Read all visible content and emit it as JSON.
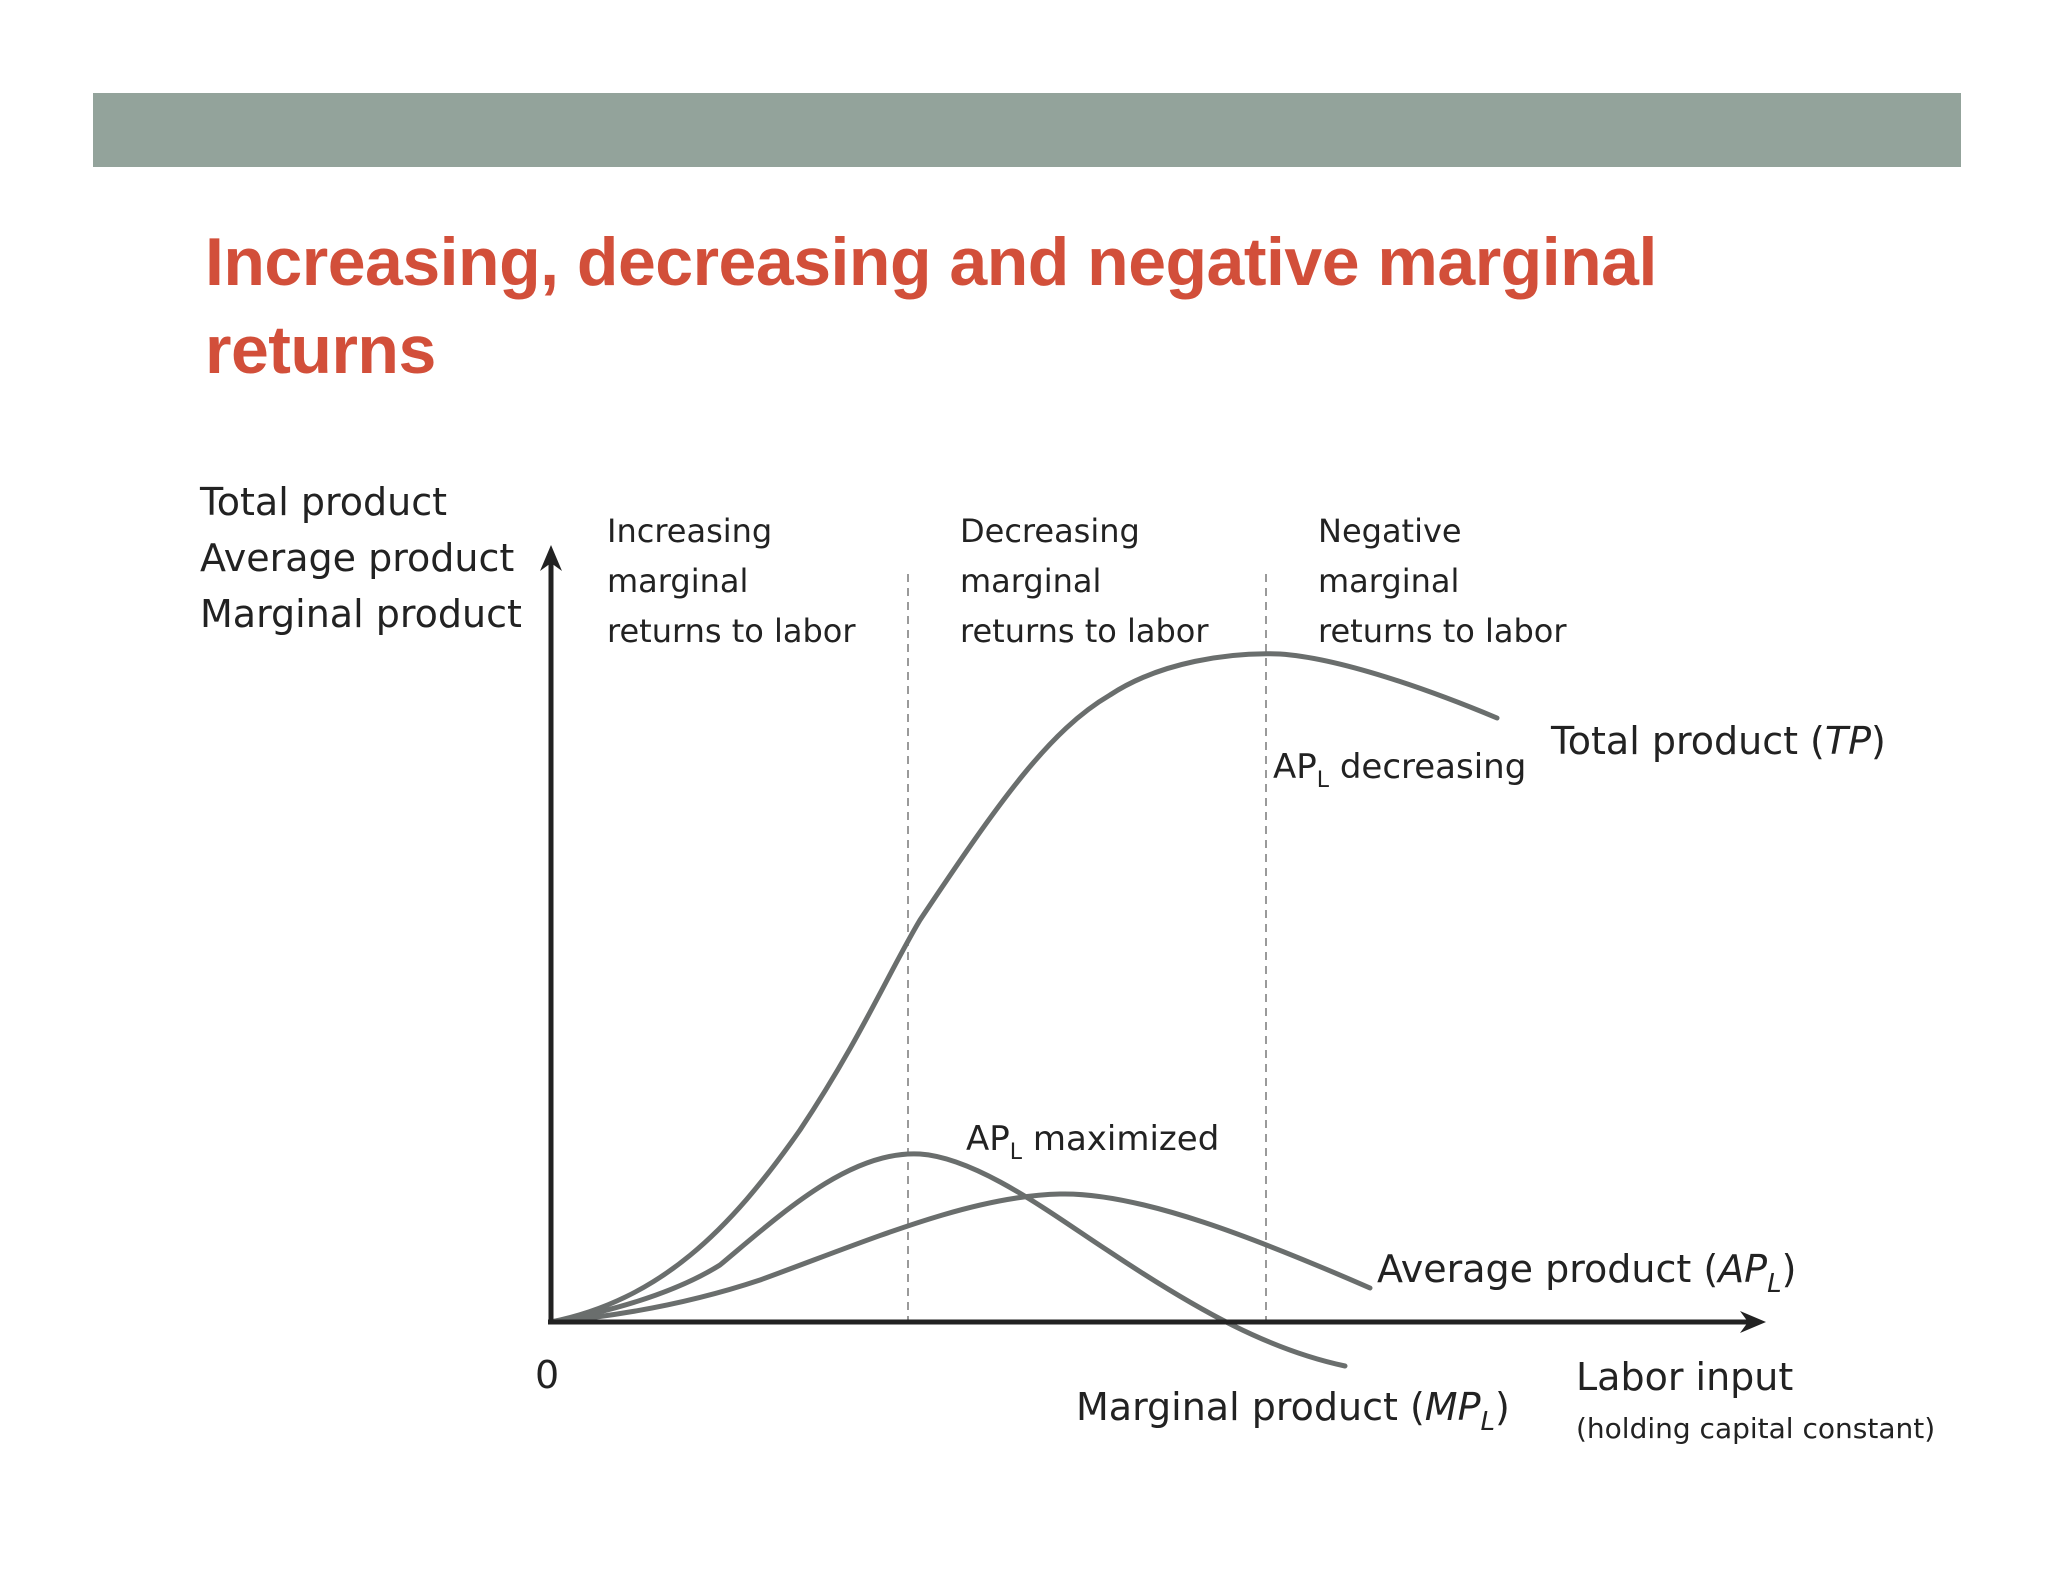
{
  "slide": {
    "title_line1": "Increasing, decreasing and negative marginal",
    "title_line2": "returns",
    "colors": {
      "band": "#93a39b",
      "title": "#d24f3a",
      "curve": "#6a6e6d",
      "axis": "#222222",
      "dash": "#9a9a9a"
    }
  },
  "diagram": {
    "y_axis_label_lines": [
      "Total product",
      "Average product",
      "Marginal product"
    ],
    "origin_label": "0",
    "x_axis_label": "Labor input",
    "x_axis_sublabel": "(holding capital constant)",
    "regions": [
      {
        "lines": [
          "Increasing",
          "marginal",
          "returns to labor"
        ]
      },
      {
        "lines": [
          "Decreasing",
          "marginal",
          "returns to labor"
        ]
      },
      {
        "lines": [
          "Negative",
          "marginal",
          "returns to labor"
        ]
      }
    ],
    "curves": {
      "tp": {
        "label_prefix": "Total product (",
        "label_symbol": "TP",
        "label_suffix": ")"
      },
      "ap": {
        "label_prefix": "Average product (",
        "label_symbol": "AP",
        "label_sub": "L",
        "label_suffix": ")"
      },
      "mp": {
        "label_prefix": "Marginal product (",
        "label_symbol": "MP",
        "label_sub": "L",
        "label_suffix": ")"
      }
    },
    "annotations": {
      "ap_max": {
        "pre": "AP",
        "sub": "L",
        "post": " maximized"
      },
      "ap_dec": {
        "pre": "AP",
        "sub": "L",
        "post": " decreasing"
      }
    }
  }
}
